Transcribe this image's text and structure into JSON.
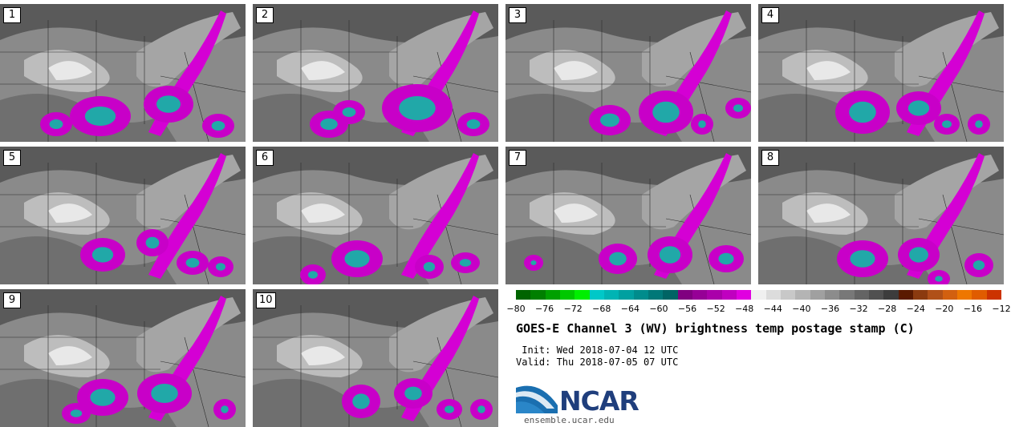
{
  "panels": [
    {
      "label": "1",
      "blobs": [
        [
          125,
          140,
          32,
          20
        ],
        [
          210,
          125,
          25,
          18
        ],
        [
          272,
          152,
          14,
          10
        ],
        [
          70,
          150,
          14,
          10
        ]
      ]
    },
    {
      "label": "2",
      "blobs": [
        [
          120,
          135,
          14,
          10
        ],
        [
          205,
          130,
          38,
          25
        ],
        [
          275,
          150,
          14,
          10
        ],
        [
          95,
          150,
          18,
          12
        ]
      ]
    },
    {
      "label": "3",
      "blobs": [
        [
          130,
          145,
          20,
          14
        ],
        [
          200,
          135,
          28,
          22
        ],
        [
          245,
          150,
          8,
          8
        ],
        [
          290,
          130,
          10,
          8
        ]
      ]
    },
    {
      "label": "4",
      "blobs": [
        [
          130,
          135,
          28,
          22
        ],
        [
          200,
          130,
          22,
          16
        ],
        [
          235,
          150,
          10,
          8
        ],
        [
          275,
          150,
          8,
          8
        ]
      ]
    },
    {
      "label": "5",
      "blobs": [
        [
          128,
          135,
          22,
          16
        ],
        [
          190,
          120,
          14,
          12
        ],
        [
          240,
          145,
          14,
          10
        ],
        [
          275,
          150,
          10,
          8
        ]
      ]
    },
    {
      "label": "6",
      "blobs": [
        [
          130,
          140,
          26,
          18
        ],
        [
          220,
          150,
          12,
          10
        ],
        [
          265,
          145,
          12,
          8
        ],
        [
          75,
          160,
          10,
          8
        ]
      ]
    },
    {
      "label": "7",
      "blobs": [
        [
          140,
          140,
          18,
          14
        ],
        [
          205,
          135,
          22,
          18
        ],
        [
          275,
          140,
          16,
          12
        ],
        [
          35,
          145,
          6,
          5
        ]
      ]
    },
    {
      "label": "8",
      "blobs": [
        [
          130,
          140,
          26,
          18
        ],
        [
          200,
          135,
          20,
          16
        ],
        [
          275,
          148,
          12,
          10
        ],
        [
          225,
          165,
          8,
          6
        ]
      ]
    },
    {
      "label": "9",
      "blobs": [
        [
          128,
          135,
          26,
          18
        ],
        [
          205,
          130,
          28,
          20
        ],
        [
          280,
          150,
          8,
          8
        ],
        [
          95,
          155,
          12,
          8
        ]
      ]
    },
    {
      "label": "10",
      "blobs": [
        [
          135,
          140,
          18,
          16
        ],
        [
          200,
          130,
          18,
          14
        ],
        [
          245,
          150,
          10,
          8
        ],
        [
          285,
          150,
          8,
          8
        ]
      ]
    }
  ],
  "colorbar": {
    "colors": [
      "#006400",
      "#007f00",
      "#00a000",
      "#00c800",
      "#00ef00",
      "#00c8c8",
      "#00b4b4",
      "#00a0a0",
      "#008c8c",
      "#007878",
      "#006464",
      "#800080",
      "#960096",
      "#aa00aa",
      "#c000c0",
      "#e000e0",
      "#f0f0f0",
      "#dcdcdc",
      "#c8c8c8",
      "#b4b4b4",
      "#a0a0a0",
      "#8c8c8c",
      "#787878",
      "#646464",
      "#505050",
      "#3c3c3c",
      "#5a1a00",
      "#8b3a0f",
      "#b05018",
      "#d26010",
      "#ee7700",
      "#e05c00",
      "#cc3300"
    ],
    "ticks": [
      "−80",
      "−76",
      "−72",
      "−68",
      "−64",
      "−60",
      "−56",
      "−52",
      "−48",
      "−44",
      "−40",
      "−36",
      "−32",
      "−28",
      "−24",
      "−20",
      "−16",
      "−12"
    ]
  },
  "title": "GOES-E Channel 3 (WV) brightness temp postage stamp (C)",
  "init_line": " Init: Wed 2018-07-04 12 UTC",
  "valid_line": "Valid: Thu 2018-07-05 07 UTC",
  "logo": {
    "text": "NCAR",
    "url": "ensemble.ucar.edu"
  }
}
